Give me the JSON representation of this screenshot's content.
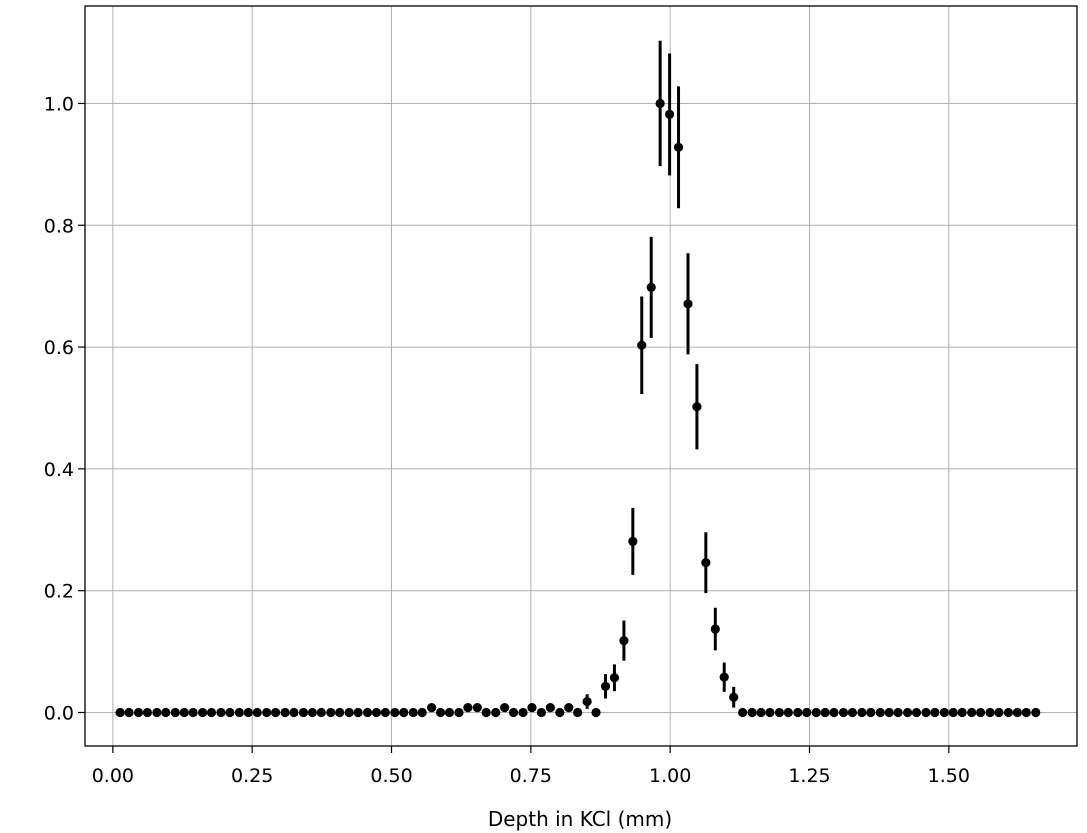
{
  "chart_data": {
    "type": "scatter",
    "title": "",
    "xlabel": "Depth in KCl (mm)",
    "ylabel": "",
    "xlim": [
      -0.05,
      1.73
    ],
    "ylim": [
      -0.055,
      1.16
    ],
    "grid": true,
    "marker_color": "#000000",
    "grid_color": "#b0b0b0",
    "xticks": [
      0.0,
      0.25,
      0.5,
      0.75,
      1.0,
      1.25,
      1.5
    ],
    "xtick_labels": [
      "0.00",
      "0.25",
      "0.50",
      "0.75",
      "1.00",
      "1.25",
      "1.50"
    ],
    "yticks": [
      0.0,
      0.2,
      0.4,
      0.6,
      0.8,
      1.0
    ],
    "ytick_labels": [
      "0.0",
      "0.2",
      "0.4",
      "0.6",
      "0.8",
      "1.0"
    ],
    "series": [
      {
        "x": [
          0.013,
          0.029,
          0.046,
          0.062,
          0.079,
          0.095,
          0.112,
          0.128,
          0.144,
          0.161,
          0.177,
          0.194,
          0.21,
          0.227,
          0.243,
          0.259,
          0.276,
          0.292,
          0.309,
          0.325,
          0.342,
          0.358,
          0.374,
          0.391,
          0.407,
          0.424,
          0.44,
          0.457,
          0.473,
          0.489,
          0.506,
          0.522,
          0.539,
          0.555,
          0.572,
          0.588,
          0.604,
          0.621,
          0.637,
          0.654,
          0.67,
          0.687,
          0.703,
          0.719,
          0.736,
          0.752,
          0.769,
          0.785,
          0.802,
          0.818,
          0.834,
          0.851,
          0.867,
          0.884,
          0.9,
          0.917,
          0.933,
          0.949,
          0.966,
          0.982,
          0.999,
          1.015,
          1.032,
          1.048,
          1.064,
          1.081,
          1.097,
          1.114,
          1.13,
          1.147,
          1.163,
          1.179,
          1.196,
          1.212,
          1.229,
          1.245,
          1.262,
          1.278,
          1.294,
          1.311,
          1.327,
          1.344,
          1.36,
          1.377,
          1.393,
          1.409,
          1.426,
          1.442,
          1.459,
          1.475,
          1.492,
          1.508,
          1.524,
          1.541,
          1.557,
          1.574,
          1.59,
          1.607,
          1.623,
          1.639,
          1.656
        ],
        "y": [
          0,
          0,
          0,
          0,
          0,
          0,
          0,
          0,
          0,
          0,
          0,
          0,
          0,
          0,
          0,
          0,
          0,
          0,
          0,
          0,
          0,
          0,
          0,
          0,
          0,
          0,
          0,
          0,
          0,
          0,
          0,
          0,
          0,
          0,
          0.008,
          0,
          0,
          0,
          0.008,
          0.008,
          0,
          0,
          0.008,
          0,
          0,
          0.008,
          0,
          0.008,
          0,
          0.008,
          0,
          0.018,
          0,
          0.043,
          0.057,
          0.118,
          0.281,
          0.603,
          0.698,
          1.0,
          0.982,
          0.928,
          0.671,
          0.502,
          0.246,
          0.137,
          0.058,
          0.025,
          0,
          0,
          0,
          0,
          0,
          0,
          0,
          0,
          0,
          0,
          0,
          0,
          0,
          0,
          0,
          0,
          0,
          0,
          0,
          0,
          0,
          0,
          0,
          0,
          0,
          0,
          0,
          0,
          0,
          0,
          0,
          0,
          0
        ],
        "yerr": [
          0,
          0,
          0,
          0,
          0,
          0,
          0,
          0,
          0,
          0,
          0,
          0,
          0,
          0,
          0,
          0,
          0,
          0,
          0,
          0,
          0,
          0,
          0,
          0,
          0,
          0,
          0,
          0,
          0,
          0,
          0,
          0,
          0,
          0,
          0.005,
          0,
          0,
          0,
          0.005,
          0.005,
          0,
          0,
          0.005,
          0,
          0,
          0.005,
          0,
          0.005,
          0,
          0.005,
          0,
          0.012,
          0,
          0.02,
          0.022,
          0.033,
          0.055,
          0.08,
          0.083,
          0.103,
          0.1,
          0.1,
          0.083,
          0.07,
          0.05,
          0.035,
          0.024,
          0.017,
          0,
          0,
          0,
          0,
          0,
          0,
          0,
          0,
          0,
          0,
          0,
          0,
          0,
          0,
          0,
          0,
          0,
          0,
          0,
          0,
          0,
          0,
          0,
          0,
          0,
          0,
          0,
          0,
          0,
          0,
          0,
          0,
          0
        ]
      }
    ]
  }
}
